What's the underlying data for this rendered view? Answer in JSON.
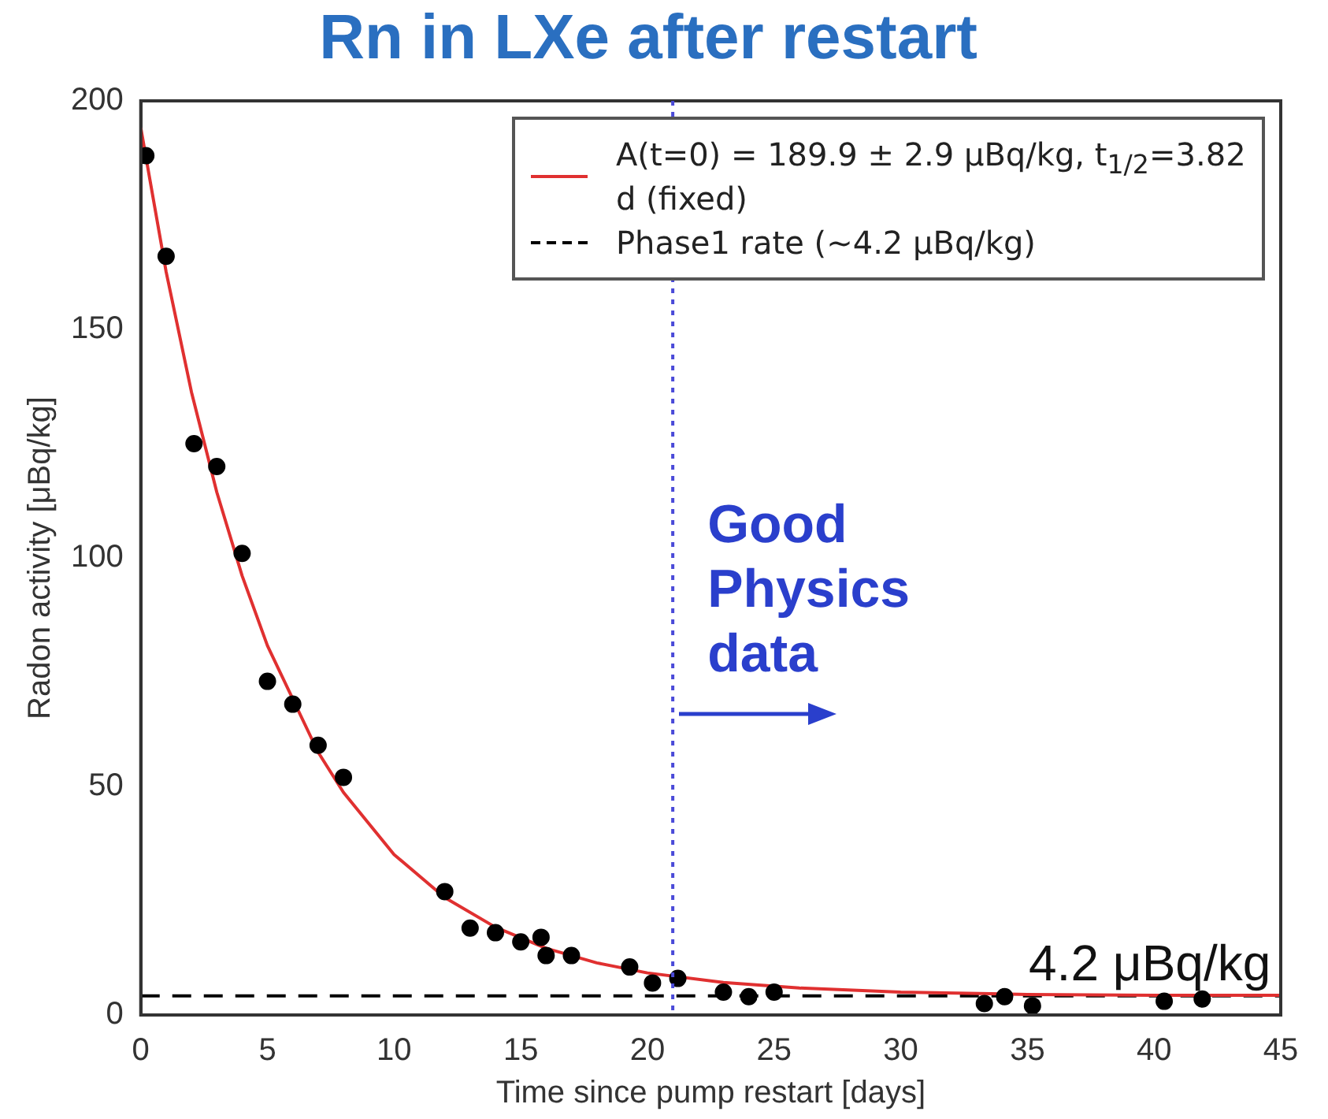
{
  "chart_data": {
    "type": "scatter",
    "title": "Rn in LXe after restart",
    "xlabel": "Time since pump restart [days]",
    "ylabel": "Radon activity [μBq/kg]",
    "xlim": [
      0,
      45
    ],
    "xticks": [
      0,
      5,
      10,
      15,
      20,
      25,
      30,
      35,
      40,
      45
    ],
    "ylim": [
      0,
      200
    ],
    "yticks": [
      0,
      50,
      100,
      150,
      200
    ],
    "grid": false,
    "legend": "top right",
    "marker": "circle",
    "series": [
      {
        "type": "scatter",
        "color": "#000000",
        "x": [
          0.2,
          1,
          2.1,
          3,
          4,
          5,
          6,
          7,
          8,
          12,
          13,
          14,
          15,
          15.8,
          16,
          17,
          19.3,
          20.2,
          21.2,
          23,
          24,
          25,
          33.3,
          34.1,
          35.2,
          40.4,
          41.9
        ],
        "values": [
          188,
          166,
          125,
          120,
          101,
          73,
          68,
          59,
          52,
          27,
          19,
          18,
          16,
          17,
          13,
          13,
          10.5,
          7,
          8,
          5,
          4,
          5,
          2.5,
          4,
          2,
          3,
          3.5
        ]
      },
      {
        "type": "line",
        "name": "A(t=0) = 189.9 ± 2.9 μBq/kg, t$_{1/2}$=3.82 d (fixed)",
        "color": "#e03030",
        "marker": "none",
        "x": [
          0,
          1,
          2,
          3,
          4,
          5,
          7,
          8,
          10,
          12,
          14,
          16,
          18,
          20,
          23,
          26,
          30,
          35,
          40,
          45
        ],
        "values": [
          194.1,
          162.6,
          136.3,
          114.4,
          96.1,
          80.8,
          57.5,
          48.7,
          35.1,
          25.7,
          19.2,
          14.6,
          11.4,
          9.2,
          7.1,
          5.9,
          5.0,
          4.5,
          4.3,
          4.3
        ]
      },
      {
        "type": "line",
        "name": "Phase1 rate (~4.2 μBq/kg)",
        "color": "#000000",
        "marker": "none",
        "line_style": "dashed",
        "x": [
          0,
          45
        ],
        "values": [
          4.2,
          4.2
        ]
      }
    ],
    "ref_lines": [
      {
        "axis": "x",
        "value": 21,
        "color": "#4a4ad8",
        "line_style": "dotted"
      }
    ],
    "annotations": [
      "Good Physics data",
      "4.2 μBq/kg"
    ]
  }
}
